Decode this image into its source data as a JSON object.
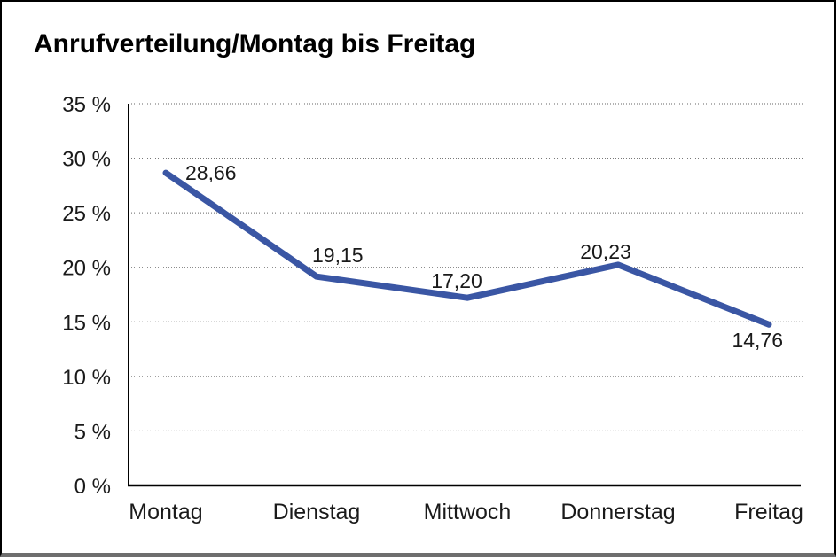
{
  "chart_data": {
    "type": "line",
    "title": "Anrufverteilung/Montag bis Freitag",
    "categories": [
      "Montag",
      "Dienstag",
      "Mittwoch",
      "Donnerstag",
      "Freitag"
    ],
    "values": [
      28.66,
      19.15,
      17.2,
      20.23,
      14.76
    ],
    "point_labels": [
      "28,66",
      "19,15",
      "17,20",
      "20,23",
      "14,76"
    ],
    "xlabel": "",
    "ylabel": "",
    "ylim": [
      0,
      35
    ],
    "y_tick_step": 5,
    "y_tick_labels": [
      "35 %",
      "30 %",
      "25 %",
      "20 %",
      "15 %",
      "10 %",
      "5 %",
      "0 %"
    ],
    "grid": "horizontal-dotted",
    "legend": "none",
    "line_color": "#3A56A4",
    "axis_color": "#000000",
    "gridline_color": "#666666",
    "label_color": "#1a1a1a"
  }
}
